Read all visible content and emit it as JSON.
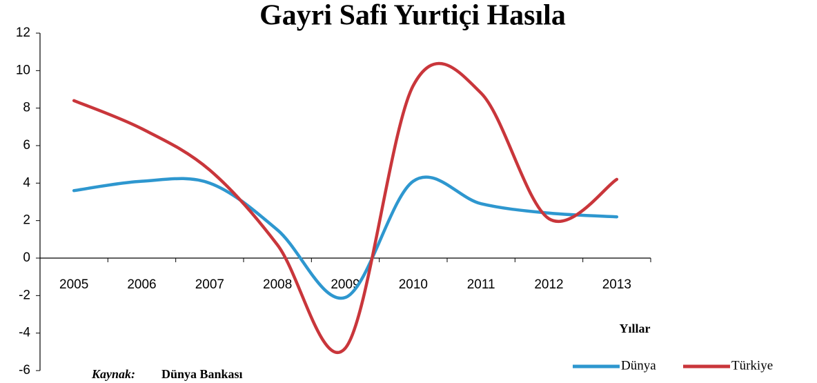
{
  "chart_data": {
    "type": "line",
    "title": "Gayri Safi Yurtiçi Hasıla",
    "categories": [
      "2005",
      "2006",
      "2007",
      "2008",
      "2009",
      "2010",
      "2011",
      "2012",
      "2013"
    ],
    "series": [
      {
        "name": "Dünya",
        "color": "#2e97cf",
        "values": [
          3.6,
          4.1,
          4.0,
          1.5,
          -2.1,
          4.1,
          2.9,
          2.4,
          2.2
        ]
      },
      {
        "name": "Türkiye",
        "color": "#c9363b",
        "values": [
          8.4,
          6.9,
          4.7,
          0.7,
          -4.8,
          9.2,
          8.8,
          2.1,
          4.2
        ]
      }
    ],
    "ylim": [
      -6,
      12
    ],
    "yticks": [
      -6,
      -4,
      -2,
      0,
      2,
      4,
      6,
      8,
      10,
      12
    ],
    "x_label": "Yıllar",
    "source_label": "Kaynak:",
    "source": "Dünya Bankası",
    "smooth": true
  }
}
